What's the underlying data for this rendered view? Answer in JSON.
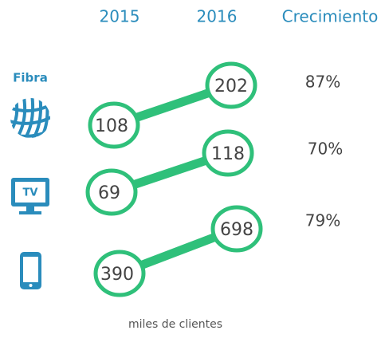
{
  "header": {
    "col_start": "2015",
    "col_end": "2016",
    "col_growth": "Crecimiento"
  },
  "rows": [
    {
      "label": "Fibra",
      "start": "108",
      "end": "202",
      "growth": "87%"
    },
    {
      "label": "TV",
      "start": "69",
      "end": "118",
      "growth": "70%"
    },
    {
      "start": "390",
      "end": "698",
      "growth": "79%"
    }
  ],
  "footnote": "miles de clientes"
}
